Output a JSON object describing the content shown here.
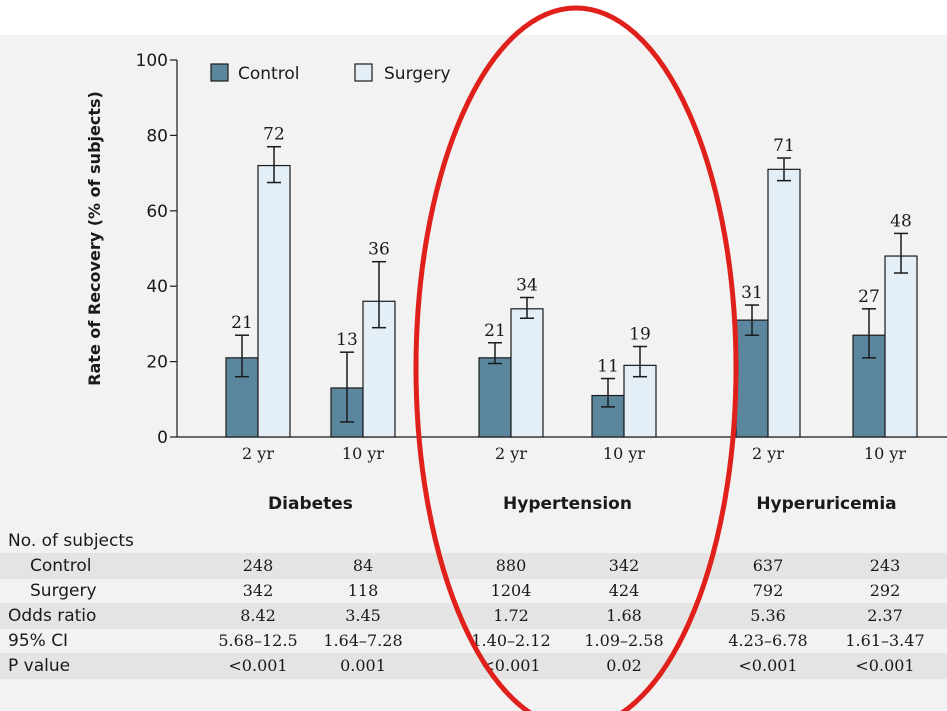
{
  "chart_data": {
    "type": "bar",
    "ylabel": "Rate of Recovery (% of subjects)",
    "ylim": [
      0,
      100
    ],
    "yticks": [
      0,
      20,
      40,
      60,
      80,
      100
    ],
    "legend": {
      "placement": "top-left",
      "entries": [
        "Control",
        "Surgery"
      ]
    },
    "colors": {
      "Control": "#5b879e",
      "Surgery": "#e3eef6",
      "edge": "#1a1a1a"
    },
    "groups": [
      {
        "name": "Diabetes",
        "categories": [
          "2 yr",
          "10 yr"
        ]
      },
      {
        "name": "Hypertension",
        "categories": [
          "2 yr",
          "10 yr"
        ]
      },
      {
        "name": "Hyperuricemia",
        "categories": [
          "2 yr",
          "10 yr"
        ]
      }
    ],
    "series": [
      {
        "name": "Control",
        "values": [
          21,
          13,
          21,
          11,
          31,
          27
        ],
        "labels": [
          "21",
          "13",
          "21",
          "11",
          "31",
          "27"
        ],
        "error_low": [
          16,
          4,
          19.5,
          8,
          27,
          21
        ],
        "error_high": [
          27,
          22.5,
          25,
          15.5,
          35,
          34
        ]
      },
      {
        "name": "Surgery",
        "values": [
          72,
          36,
          34,
          19,
          71,
          48
        ],
        "labels": [
          "72",
          "36",
          "34",
          "19",
          "71",
          "48"
        ],
        "error_low": [
          67.5,
          29,
          31.5,
          16,
          68,
          43.5
        ],
        "error_high": [
          77,
          46.5,
          37,
          24,
          74,
          54
        ]
      }
    ]
  },
  "table": {
    "header": "No. of subjects",
    "rows": [
      {
        "label": "Control",
        "values": [
          "248",
          "84",
          "880",
          "342",
          "637",
          "243"
        ]
      },
      {
        "label": "Surgery",
        "values": [
          "342",
          "118",
          "1204",
          "424",
          "792",
          "292"
        ]
      },
      {
        "label": "Odds ratio",
        "values": [
          "8.42",
          "3.45",
          "1.72",
          "1.68",
          "5.36",
          "2.37"
        ]
      },
      {
        "label": "95% CI",
        "values": [
          "5.68–12.5",
          "1.64–7.28",
          "1.40–2.12",
          "1.09–2.58",
          "4.23–6.78",
          "1.61–3.47"
        ]
      },
      {
        "label": "P value",
        "values": [
          "<0.001",
          "0.001",
          "<0.001",
          "0.02",
          "<0.001",
          "<0.001"
        ]
      }
    ]
  },
  "annotation": {
    "highlight_color": "#e0201b",
    "highlights_group": "Hypertension"
  }
}
